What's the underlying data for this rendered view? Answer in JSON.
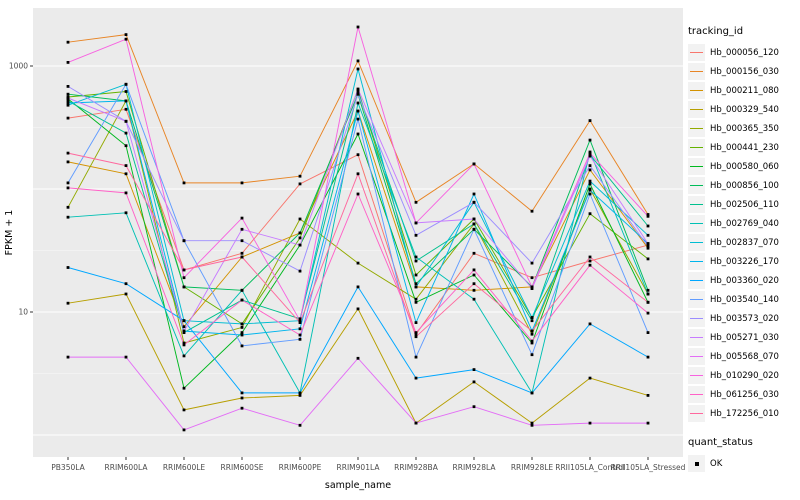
{
  "chart_data": {
    "type": "line",
    "title": "",
    "xlabel": "sample_name",
    "ylabel": "FPKM + 1",
    "y_scale": "log10",
    "legend_position": "right",
    "panel_bg": "#EBEBEB",
    "grid_color": "#FFFFFF",
    "axis_text_color": "#4D4D4D",
    "point_color": "#000000",
    "ylim": [
      0.66,
      2900
    ],
    "y_ticks": [
      {
        "value": 1000,
        "label": "1000"
      },
      {
        "value": 10,
        "label": "10"
      }
    ],
    "y_major_gridlines": [
      1,
      10,
      100,
      1000
    ],
    "y_minor_gridlines": [
      3.16,
      31.6,
      316
    ],
    "x_categories": [
      "PB350LA",
      "RRIM600LA",
      "RRIM600LE",
      "RRIM600SE",
      "RRIM600PE",
      "RRIM901LA",
      "RRIM928BA",
      "RRIM928LA",
      "RRIM928LE",
      "RRII105LA_Control",
      "RRII105LA_Stressed"
    ],
    "legend": {
      "tracking_title": "tracking_id",
      "quant_title": "quant_status",
      "quant_entries": [
        {
          "label": "OK",
          "marker": "black-square"
        }
      ]
    },
    "series": [
      {
        "name": "Hb_000056_120",
        "color": "#F8766D",
        "values": [
          377,
          445,
          22,
          30,
          110,
          190,
          6.6,
          30,
          19,
          26,
          35
        ]
      },
      {
        "name": "Hb_000156_030",
        "color": "#E88526",
        "values": [
          1560,
          1800,
          112,
          112,
          127,
          1100,
          78,
          160,
          66,
          360,
          62
        ]
      },
      {
        "name": "Hb_000211_080",
        "color": "#D39200",
        "values": [
          166,
          133,
          7.6,
          28,
          44,
          430,
          16,
          15,
          16,
          143,
          33
        ]
      },
      {
        "name": "Hb_000329_540",
        "color": "#B79F00",
        "values": [
          11.8,
          14,
          1.6,
          2.0,
          2.1,
          10.6,
          1.25,
          2.7,
          1.25,
          2.9,
          2.1
        ]
      },
      {
        "name": "Hb_000365_350",
        "color": "#93AA00",
        "values": [
          71,
          520,
          5.6,
          7.5,
          57,
          25,
          12.7,
          52,
          6.6,
          100,
          14
        ]
      },
      {
        "name": "Hb_000441_230",
        "color": "#64B200",
        "values": [
          560,
          620,
          16,
          8,
          40,
          640,
          20,
          57,
          9,
          63,
          27
        ]
      },
      {
        "name": "Hb_000580_060",
        "color": "#00B81F",
        "values": [
          540,
          225,
          2.4,
          6.8,
          35,
          280,
          12,
          20,
          5.6,
          110,
          12
        ]
      },
      {
        "name": "Hb_000856_100",
        "color": "#00BC59",
        "values": [
          590,
          520,
          16,
          15,
          44,
          590,
          17,
          47,
          16,
          250,
          15
        ]
      },
      {
        "name": "Hb_002506_110",
        "color": "#00C08E",
        "values": [
          520,
          285,
          6.8,
          12.5,
          8.8,
          620,
          26,
          52,
          8.5,
          190,
          50
        ]
      },
      {
        "name": "Hb_002769_040",
        "color": "#00C0B4",
        "values": [
          59,
          64,
          4.4,
          15,
          2.2,
          500,
          28,
          12.7,
          2.2,
          200,
          14
        ]
      },
      {
        "name": "Hb_002837_070",
        "color": "#00BDD2",
        "values": [
          480,
          710,
          8.5,
          8,
          8.5,
          945,
          16,
          78,
          9,
          116,
          42
        ]
      },
      {
        "name": "Hb_003226_170",
        "color": "#00B5EC",
        "values": [
          500,
          520,
          7,
          6.5,
          7.3,
          430,
          8.2,
          91,
          7,
          98,
          36
        ]
      },
      {
        "name": "Hb_003360_020",
        "color": "#00A7FF",
        "values": [
          23,
          17,
          8.5,
          2.2,
          2.2,
          16,
          2.9,
          3.4,
          2.2,
          8,
          4.3
        ]
      },
      {
        "name": "Hb_003540_140",
        "color": "#619CFF",
        "values": [
          112,
          710,
          38,
          5.3,
          6,
          370,
          4.3,
          47,
          4.5,
          91,
          6.8
        ]
      },
      {
        "name": "Hb_003573_020",
        "color": "#9C8DFF",
        "values": [
          683,
          355,
          38,
          38,
          21.5,
          590,
          42,
          78,
          25,
          155,
          34
        ]
      },
      {
        "name": "Hb_005271_030",
        "color": "#C77CFF",
        "values": [
          549,
          355,
          7,
          47,
          35,
          650,
          53,
          57,
          15.5,
          185,
          36
        ]
      },
      {
        "name": "Hb_005568_070",
        "color": "#E36EF6",
        "values": [
          4.3,
          4.3,
          1.1,
          1.65,
          1.2,
          4.2,
          1.25,
          1.7,
          1.2,
          1.25,
          1.25
        ]
      },
      {
        "name": "Hb_010290_020",
        "color": "#F763E0",
        "values": [
          1070,
          1650,
          19,
          58,
          8.5,
          2075,
          53,
          160,
          16,
          196,
          60
        ]
      },
      {
        "name": "Hb_061256_030",
        "color": "#FF61C7",
        "values": [
          102,
          93,
          5.4,
          12.5,
          6.5,
          91,
          6.8,
          22,
          5.8,
          24,
          9.8
        ]
      },
      {
        "name": "Hb_172256_010",
        "color": "#FF689E",
        "values": [
          196,
          155,
          22,
          28,
          8.2,
          133,
          6.3,
          17,
          7,
          28,
          12
        ]
      }
    ]
  }
}
